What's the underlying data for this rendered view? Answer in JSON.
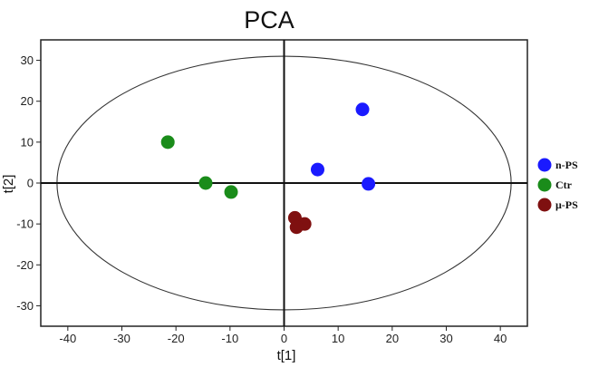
{
  "chart_data": {
    "type": "scatter",
    "title": "PCA",
    "xlabel": "t[1]",
    "ylabel": "t[2]",
    "xlim": [
      -45,
      45
    ],
    "ylim": [
      -35,
      35
    ],
    "xticks": [
      -40,
      -30,
      -20,
      -10,
      0,
      10,
      20,
      30,
      40
    ],
    "yticks": [
      -30,
      -20,
      -10,
      0,
      10,
      20,
      30
    ],
    "ellipse": {
      "center": [
        0,
        0
      ],
      "rx": 42,
      "ry": 31
    },
    "legend_position": "right",
    "series": [
      {
        "name": "n-PS",
        "color": "#1a1aff",
        "points": [
          [
            14.5,
            18.0
          ],
          [
            6.2,
            3.3
          ],
          [
            15.6,
            -0.2
          ]
        ]
      },
      {
        "name": "Ctr",
        "color": "#1a8c1a",
        "points": [
          [
            -21.5,
            10.0
          ],
          [
            -14.5,
            0.0
          ],
          [
            -9.8,
            -2.2
          ]
        ]
      },
      {
        "name": "μ-PS",
        "color": "#7f1010",
        "points": [
          [
            2.0,
            -8.5
          ],
          [
            3.8,
            -10.0
          ],
          [
            2.3,
            -10.8
          ]
        ]
      }
    ]
  }
}
